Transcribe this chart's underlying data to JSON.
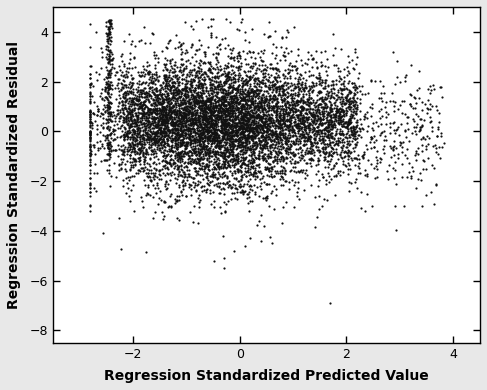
{
  "title": "",
  "xlabel": "Regression Standardized Predicted Value",
  "ylabel": "Regression Standardized Residual",
  "xlim": [
    -3.5,
    4.5
  ],
  "ylim": [
    -8.5,
    5.0
  ],
  "xticks": [
    -2,
    0,
    2,
    4
  ],
  "yticks": [
    -8,
    -6,
    -4,
    -2,
    0,
    2,
    4
  ],
  "dot_color": "#111111",
  "dot_size": 2.5,
  "background_color": "#e8e8e8",
  "plot_bg_color": "#ffffff",
  "seed": 42,
  "n_main": 5000,
  "n_vert": 200,
  "xlabel_fontsize": 10,
  "ylabel_fontsize": 10,
  "tick_fontsize": 9,
  "font_family": "DejaVu Sans"
}
